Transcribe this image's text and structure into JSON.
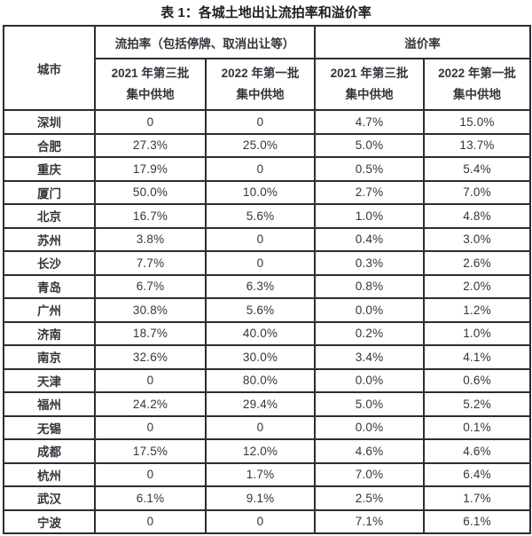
{
  "page": {
    "title": "表 1：各城土地出让流拍率和溢价率"
  },
  "colors": {
    "border": "#2c2c33",
    "text": "#35353d",
    "background": "#ffffff"
  },
  "table": {
    "city_header": "城市",
    "groups": [
      {
        "label": "流拍率（包括停牌、取消出让等）"
      },
      {
        "label": "溢价率"
      }
    ],
    "subheaders": [
      {
        "line1": "2021 年第三批",
        "line2": "集中供地"
      },
      {
        "line1": "2022 年第一批",
        "line2": "集中供地"
      },
      {
        "line1": "2021 年第三批",
        "line2": "集中供地"
      },
      {
        "line1": "2022 年第一批",
        "line2": "集中供地"
      }
    ],
    "rows": [
      {
        "city": "深圳",
        "values": [
          "0",
          "0",
          "4.7%",
          "15.0%"
        ]
      },
      {
        "city": "合肥",
        "values": [
          "27.3%",
          "25.0%",
          "5.0%",
          "13.7%"
        ]
      },
      {
        "city": "重庆",
        "values": [
          "17.9%",
          "0",
          "0.5%",
          "5.4%"
        ]
      },
      {
        "city": "厦门",
        "values": [
          "50.0%",
          "10.0%",
          "2.7%",
          "7.0%"
        ]
      },
      {
        "city": "北京",
        "values": [
          "16.7%",
          "5.6%",
          "1.0%",
          "4.8%"
        ]
      },
      {
        "city": "苏州",
        "values": [
          "3.8%",
          "0",
          "0.4%",
          "3.0%"
        ]
      },
      {
        "city": "长沙",
        "values": [
          "7.7%",
          "0",
          "0.3%",
          "2.6%"
        ]
      },
      {
        "city": "青岛",
        "values": [
          "6.7%",
          "6.3%",
          "0.8%",
          "2.0%"
        ]
      },
      {
        "city": "广州",
        "values": [
          "30.8%",
          "5.6%",
          "0.0%",
          "1.2%"
        ]
      },
      {
        "city": "济南",
        "values": [
          "18.7%",
          "40.0%",
          "0.2%",
          "1.0%"
        ]
      },
      {
        "city": "南京",
        "values": [
          "32.6%",
          "30.0%",
          "3.4%",
          "4.1%"
        ]
      },
      {
        "city": "天津",
        "values": [
          "0",
          "80.0%",
          "0.0%",
          "0.6%"
        ]
      },
      {
        "city": "福州",
        "values": [
          "24.2%",
          "29.4%",
          "5.0%",
          "5.2%"
        ]
      },
      {
        "city": "无锡",
        "values": [
          "0",
          "0",
          "0.0%",
          "0.1%"
        ]
      },
      {
        "city": "成都",
        "values": [
          "17.5%",
          "12.0%",
          "4.6%",
          "4.6%"
        ]
      },
      {
        "city": "杭州",
        "values": [
          "0",
          "1.7%",
          "7.0%",
          "6.4%"
        ]
      },
      {
        "city": "武汉",
        "values": [
          "6.1%",
          "9.1%",
          "2.5%",
          "1.7%"
        ]
      },
      {
        "city": "宁波",
        "values": [
          "0",
          "0",
          "7.1%",
          "6.1%"
        ]
      }
    ]
  }
}
